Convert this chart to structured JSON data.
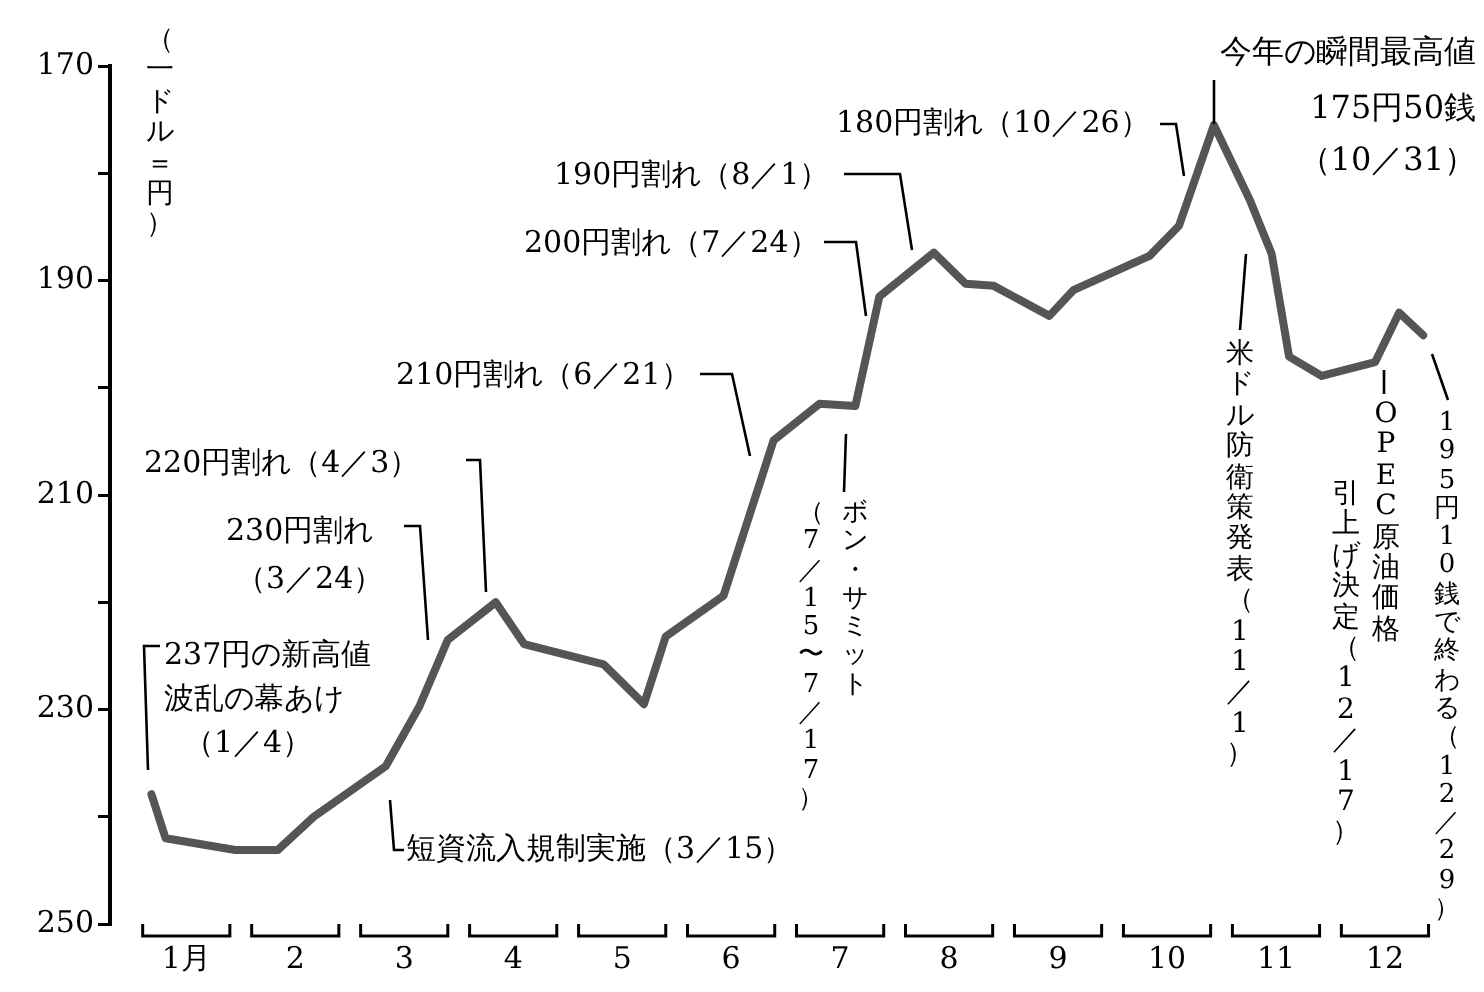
{
  "chart_data": {
    "type": "line",
    "ylabel": "（一ドル＝円）",
    "x": [
      0.18,
      0.31,
      0.95,
      1.34,
      1.67,
      2.33,
      2.64,
      2.9,
      3.34,
      3.6,
      4.33,
      4.7,
      4.9,
      5.43,
      5.89,
      6.31,
      6.64,
      6.86,
      7.36,
      7.65,
      7.91,
      8.42,
      8.64,
      9.34,
      9.61,
      9.93,
      10.26,
      10.46,
      10.62,
      10.92,
      11.41,
      11.63,
      11.85
    ],
    "values": [
      237.9,
      242,
      243.1,
      243.1,
      240,
      235.3,
      229.7,
      223.5,
      220,
      223.9,
      225.8,
      229.5,
      223.2,
      219.4,
      204.9,
      201.5,
      201.7,
      191.5,
      187.4,
      190.3,
      190.5,
      193.3,
      190.9,
      187.7,
      184.9,
      175.5,
      182.5,
      187.5,
      197.1,
      198.9,
      197.6,
      193,
      195.1
    ],
    "color": "#555555",
    "marker": "none",
    "line_style": "solid",
    "grid": false,
    "legend": false,
    "xlim": [
      -0.2,
      11.95
    ],
    "xticks": [
      {
        "value": 0.5,
        "label": "1月"
      },
      {
        "value": 1.5,
        "label": "2"
      },
      {
        "value": 2.5,
        "label": "3"
      },
      {
        "value": 3.5,
        "label": "4"
      },
      {
        "value": 4.5,
        "label": "5"
      },
      {
        "value": 5.5,
        "label": "6"
      },
      {
        "value": 6.5,
        "label": "7"
      },
      {
        "value": 7.5,
        "label": "8"
      },
      {
        "value": 8.5,
        "label": "9"
      },
      {
        "value": 9.5,
        "label": "10"
      },
      {
        "value": 10.5,
        "label": "11"
      },
      {
        "value": 11.5,
        "label": "12"
      }
    ],
    "ylim": [
      250,
      170
    ],
    "yticks": [
      170,
      {
        "value": 180,
        "label": null
      },
      190,
      {
        "value": 200,
        "label": null
      },
      210,
      {
        "value": 220,
        "label": null
      },
      230,
      {
        "value": 240,
        "label": null
      },
      250
    ],
    "annotations": [
      "237円の新高値",
      "波乱の幕あけ",
      "（1／4）",
      "230円割れ",
      "（3／24）",
      "220円割れ（4／3）",
      "210円割れ（6／21）",
      "200円割れ（7／24）",
      "190円割れ（8／1）",
      "180円割れ（10／26）",
      "今年の瞬間最高値",
      "175円50銭",
      "（10／31）",
      "短資流入規制実施（3／15）",
      "ボン・サミット",
      "（7／15〜7／17）",
      "米ドル防衛策発表（11／1）",
      "OPEC原油価格",
      "引上げ決定（12／17）",
      "195円10銭で終わる（12／29）"
    ]
  }
}
